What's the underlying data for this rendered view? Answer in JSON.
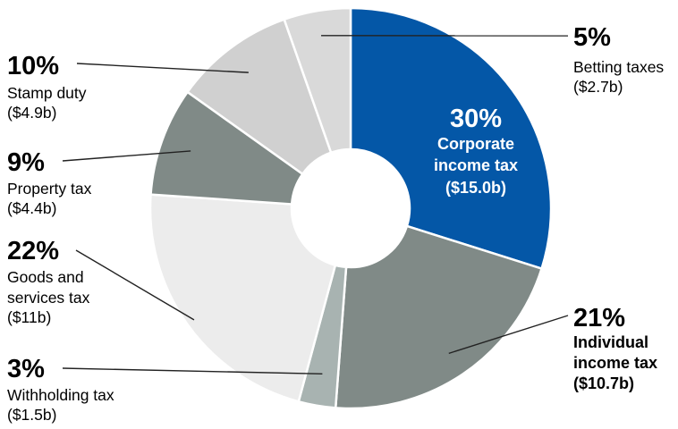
{
  "chart_data": {
    "type": "pie",
    "style": "donut",
    "categories": [
      "Corporate income tax",
      "Individual income tax",
      "Withholding tax",
      "Goods and services tax",
      "Property tax",
      "Stamp duty",
      "Betting taxes"
    ],
    "values": [
      15.0,
      10.7,
      1.5,
      11,
      4.4,
      4.9,
      2.7
    ],
    "slices": [
      {
        "label_lines": [
          "Corporate",
          "income tax"
        ],
        "percent": "30%",
        "amount": "($15.0b)",
        "color": "#0457a7"
      },
      {
        "label_lines": [
          "Individual",
          "income tax"
        ],
        "percent": "21%",
        "amount": "($10.7b)",
        "color": "#808a87"
      },
      {
        "label_lines": [
          "Withholding tax"
        ],
        "percent": "3%",
        "amount": "($1.5b)",
        "color": "#a8b3b1"
      },
      {
        "label_lines": [
          "Goods and",
          "services tax"
        ],
        "percent": "22%",
        "amount": "($11b)",
        "color": "#ececec"
      },
      {
        "label_lines": [
          "Property tax"
        ],
        "percent": "9%",
        "amount": "($4.4b)",
        "color": "#808a87"
      },
      {
        "label_lines": [
          "Stamp duty"
        ],
        "percent": "10%",
        "amount": "($4.9b)",
        "color": "#d0d0d0"
      },
      {
        "label_lines": [
          "Betting taxes"
        ],
        "percent": "5%",
        "amount": "($2.7b)",
        "color": "#d9d9d9"
      }
    ]
  }
}
